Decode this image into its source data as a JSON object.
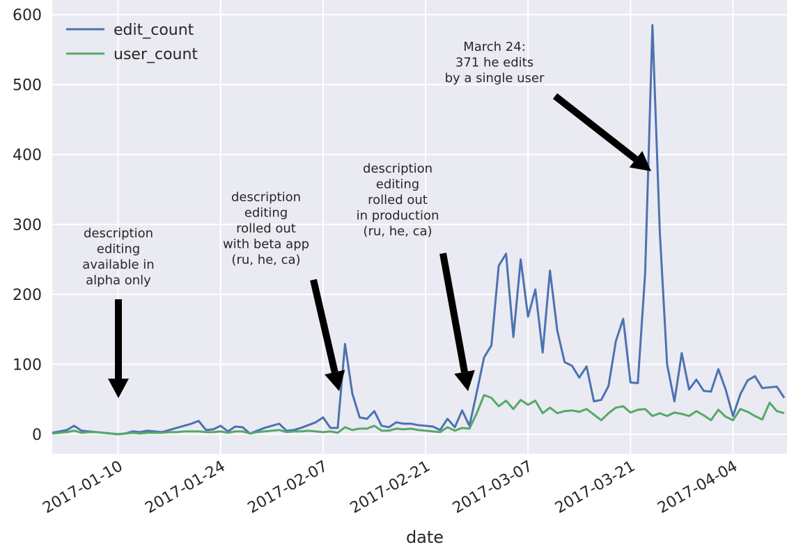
{
  "chart_data": {
    "type": "line",
    "x_label": "date",
    "x": [
      "2017-01-01",
      "2017-01-02",
      "2017-01-03",
      "2017-01-04",
      "2017-01-05",
      "2017-01-06",
      "2017-01-07",
      "2017-01-08",
      "2017-01-09",
      "2017-01-10",
      "2017-01-11",
      "2017-01-12",
      "2017-01-13",
      "2017-01-14",
      "2017-01-15",
      "2017-01-16",
      "2017-01-17",
      "2017-01-18",
      "2017-01-19",
      "2017-01-20",
      "2017-01-21",
      "2017-01-22",
      "2017-01-23",
      "2017-01-24",
      "2017-01-25",
      "2017-01-26",
      "2017-01-27",
      "2017-01-28",
      "2017-01-29",
      "2017-01-30",
      "2017-01-31",
      "2017-02-01",
      "2017-02-02",
      "2017-02-03",
      "2017-02-04",
      "2017-02-05",
      "2017-02-06",
      "2017-02-07",
      "2017-02-08",
      "2017-02-09",
      "2017-02-10",
      "2017-02-11",
      "2017-02-12",
      "2017-02-13",
      "2017-02-14",
      "2017-02-15",
      "2017-02-16",
      "2017-02-17",
      "2017-02-18",
      "2017-02-19",
      "2017-02-20",
      "2017-02-21",
      "2017-02-22",
      "2017-02-23",
      "2017-02-24",
      "2017-02-25",
      "2017-02-26",
      "2017-02-27",
      "2017-02-28",
      "2017-03-01",
      "2017-03-02",
      "2017-03-03",
      "2017-03-04",
      "2017-03-05",
      "2017-03-06",
      "2017-03-07",
      "2017-03-08",
      "2017-03-09",
      "2017-03-10",
      "2017-03-11",
      "2017-03-12",
      "2017-03-13",
      "2017-03-14",
      "2017-03-15",
      "2017-03-16",
      "2017-03-17",
      "2017-03-18",
      "2017-03-19",
      "2017-03-20",
      "2017-03-21",
      "2017-03-22",
      "2017-03-23",
      "2017-03-24",
      "2017-03-25",
      "2017-03-26",
      "2017-03-27",
      "2017-03-28",
      "2017-03-29",
      "2017-03-30",
      "2017-03-31",
      "2017-04-01",
      "2017-04-02",
      "2017-04-03",
      "2017-04-04",
      "2017-04-05",
      "2017-04-06",
      "2017-04-07",
      "2017-04-08",
      "2017-04-09",
      "2017-04-10",
      "2017-04-11"
    ],
    "series": [
      {
        "name": "edit_count",
        "color": "#4c72b0",
        "values": [
          2,
          4,
          6,
          12,
          5,
          4,
          3,
          2,
          1,
          0,
          1,
          4,
          3,
          5,
          4,
          3,
          6,
          9,
          12,
          15,
          19,
          6,
          7,
          12,
          4,
          11,
          10,
          1,
          5,
          9,
          12,
          15,
          5,
          6,
          9,
          13,
          17,
          24,
          9,
          9,
          129,
          58,
          24,
          22,
          33,
          12,
          10,
          17,
          15,
          15,
          13,
          12,
          11,
          6,
          22,
          10,
          34,
          12,
          60,
          110,
          127,
          241,
          258,
          139,
          250,
          168,
          207,
          117,
          234,
          148,
          103,
          98,
          81,
          97,
          47,
          49,
          69,
          133,
          165,
          74,
          73,
          230,
          585,
          290,
          100,
          47,
          116,
          64,
          78,
          62,
          61,
          93,
          64,
          26,
          57,
          77,
          83,
          66,
          67,
          68,
          52
        ]
      },
      {
        "name": "user_count",
        "color": "#55a868",
        "values": [
          1,
          2,
          3,
          5,
          2,
          3,
          3,
          2,
          1,
          0,
          1,
          2,
          1,
          2,
          2,
          2,
          3,
          3,
          4,
          4,
          4,
          3,
          3,
          4,
          2,
          4,
          4,
          1,
          3,
          4,
          5,
          6,
          3,
          4,
          4,
          5,
          4,
          3,
          4,
          2,
          10,
          6,
          8,
          8,
          12,
          5,
          5,
          8,
          7,
          8,
          6,
          5,
          4,
          3,
          10,
          5,
          9,
          8,
          30,
          56,
          52,
          40,
          48,
          36,
          49,
          42,
          48,
          30,
          38,
          30,
          33,
          34,
          32,
          36,
          28,
          20,
          30,
          38,
          40,
          31,
          35,
          36,
          26,
          30,
          26,
          31,
          29,
          26,
          33,
          27,
          20,
          35,
          25,
          20,
          36,
          32,
          26,
          21,
          45,
          33,
          30
        ]
      }
    ],
    "xlim": [
      "2017-01-01",
      "2017-04-11"
    ],
    "xticks": [
      "2017-01-10",
      "2017-01-24",
      "2017-02-07",
      "2017-02-21",
      "2017-03-07",
      "2017-03-21",
      "2017-04-04"
    ],
    "ylim": [
      -28,
      621
    ],
    "yticks": [
      0,
      100,
      200,
      300,
      400,
      500,
      600
    ],
    "grid": true,
    "legend": "upper left",
    "annotations": [
      {
        "lines": [
          "description",
          "editing",
          "available in",
          "alpha only"
        ]
      },
      {
        "lines": [
          "description",
          "editing",
          "rolled out",
          "with beta app",
          "(ru, he, ca)"
        ]
      },
      {
        "lines": [
          "description",
          "editing",
          "rolled out",
          "in production",
          "(ru, he, ca)"
        ]
      },
      {
        "lines": [
          "March 24:",
          "371 he edits",
          "by a single user"
        ]
      }
    ]
  }
}
